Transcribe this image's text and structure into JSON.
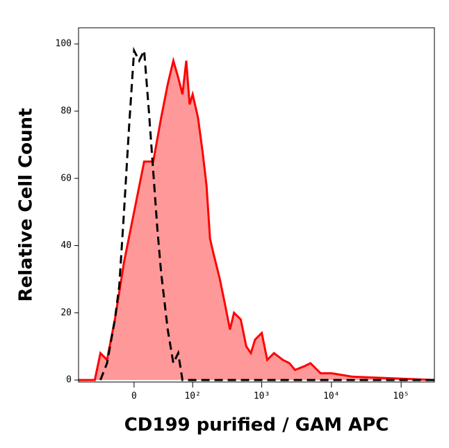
{
  "chart_data": {
    "type": "histogram-overlay",
    "xlabel": "CD199 purified / GAM APC",
    "ylabel": "Relative Cell Count",
    "xscale": "logicle",
    "xlim": [
      -90,
      300000
    ],
    "ylim": [
      -0.6,
      104.8
    ],
    "xticks": [
      0,
      {
        "value": 100,
        "label": "10²"
      },
      {
        "value": 1000,
        "label": "10³"
      },
      {
        "value": 10000,
        "label": "10⁴"
      },
      {
        "value": 100000,
        "label": "10⁵"
      }
    ],
    "yticks": [
      0,
      20,
      40,
      60,
      80,
      100
    ],
    "series": [
      {
        "color": "#ff0000",
        "fill": "#ff9999",
        "dashed": false,
        "x": [
          -90,
          -60,
          -50,
          -40,
          -30,
          -20,
          -10,
          0,
          10,
          20,
          30,
          40,
          50,
          60,
          70,
          80,
          90,
          100,
          120,
          140,
          160,
          180,
          200,
          250,
          300,
          350,
          400,
          500,
          600,
          700,
          800,
          1000,
          1200,
          1500,
          2000,
          2500,
          3000,
          4000,
          5000,
          7000,
          10000,
          20000,
          300000
        ],
        "values": [
          0,
          0,
          0,
          8,
          6,
          18,
          35,
          50,
          65,
          65,
          78,
          88,
          95,
          90,
          85,
          95,
          82,
          85,
          78,
          68,
          58,
          42,
          38,
          30,
          22,
          15,
          20,
          18,
          10,
          8,
          12,
          14,
          6,
          8,
          6,
          5,
          3,
          4,
          5,
          2,
          2,
          1,
          0
        ]
      },
      {
        "color": "#000000",
        "dashed": true,
        "x": [
          -40,
          -30,
          -20,
          -15,
          -10,
          -5,
          0,
          5,
          10,
          15,
          20,
          25,
          30,
          40,
          50,
          60,
          70,
          100,
          300000
        ],
        "values": [
          0,
          5,
          18,
          28,
          50,
          75,
          98,
          95,
          98,
          80,
          62,
          45,
          32,
          15,
          5,
          8,
          0,
          0,
          0
        ]
      }
    ]
  }
}
